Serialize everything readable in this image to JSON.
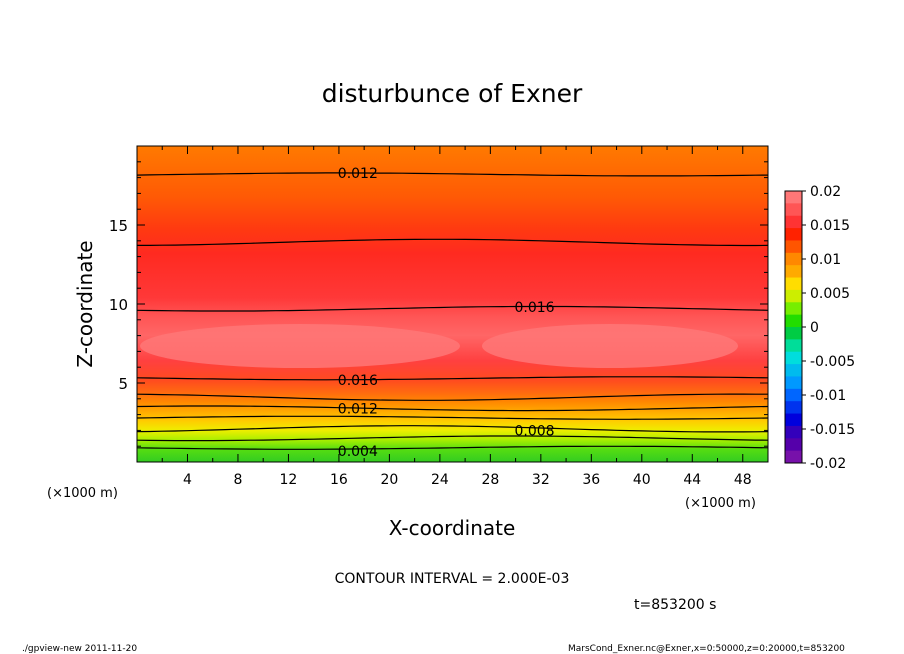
{
  "chart_data": {
    "type": "heatmap",
    "title": "disturbunce of Exner",
    "xlabel": "X-coordinate",
    "ylabel": "Z-coordinate",
    "x_unit": "(×1000 m)",
    "y_unit": "(×1000 m)",
    "xlim": [
      0,
      50
    ],
    "ylim": [
      0,
      20
    ],
    "x_ticks": [
      4,
      8,
      12,
      16,
      20,
      24,
      28,
      32,
      36,
      40,
      44,
      48
    ],
    "y_ticks": [
      5,
      10,
      15
    ],
    "x_tick_labels": [
      "4",
      "8",
      "12",
      "16",
      "20",
      "24",
      "28",
      "32",
      "36",
      "40",
      "44",
      "48"
    ],
    "y_tick_labels": [
      "5",
      "10",
      "15"
    ],
    "colorbar": {
      "range": [
        -0.02,
        0.02
      ],
      "tick_labels": [
        "0.02",
        "0.015",
        "0.01",
        "0.005",
        "0",
        "-0.005",
        "-0.01",
        "-0.015",
        "-0.02"
      ]
    },
    "contour_interval_text": "CONTOUR INTERVAL = 2.000E-03",
    "time_text": "t=853200 s",
    "contour_labels": [
      {
        "text": "0.012",
        "x": 17.5,
        "z": 18.3
      },
      {
        "text": "0.016",
        "x": 31.5,
        "z": 9.8
      },
      {
        "text": "0.016",
        "x": 17.5,
        "z": 5.2
      },
      {
        "text": "0.012",
        "x": 17.5,
        "z": 3.4
      },
      {
        "text": "0.008",
        "x": 31.5,
        "z": 2.0
      },
      {
        "text": "0.004",
        "x": 17.5,
        "z": 0.7
      }
    ],
    "contour_levels": [
      {
        "value": 0.004,
        "z": 0.9
      },
      {
        "value": 0.006,
        "z": 1.5
      },
      {
        "value": 0.008,
        "z": 2.1
      },
      {
        "value": 0.01,
        "z": 2.8
      },
      {
        "value": 0.012,
        "z": 3.4
      },
      {
        "value": 0.014,
        "z": 4.1
      },
      {
        "value": 0.016,
        "z": 5.3
      },
      {
        "value": 0.016,
        "z": 9.7
      },
      {
        "value": 0.014,
        "z": 13.9
      },
      {
        "value": 0.012,
        "z": 18.2
      }
    ],
    "legend_position": "right"
  },
  "footer": {
    "left": "./gpview-new   2011-11-20",
    "right": "MarsCond_Exner.nc@Exner,x=0:50000,z=0:20000,t=853200"
  },
  "colors": {
    "background": "#ffffff",
    "frame": "#000000"
  }
}
